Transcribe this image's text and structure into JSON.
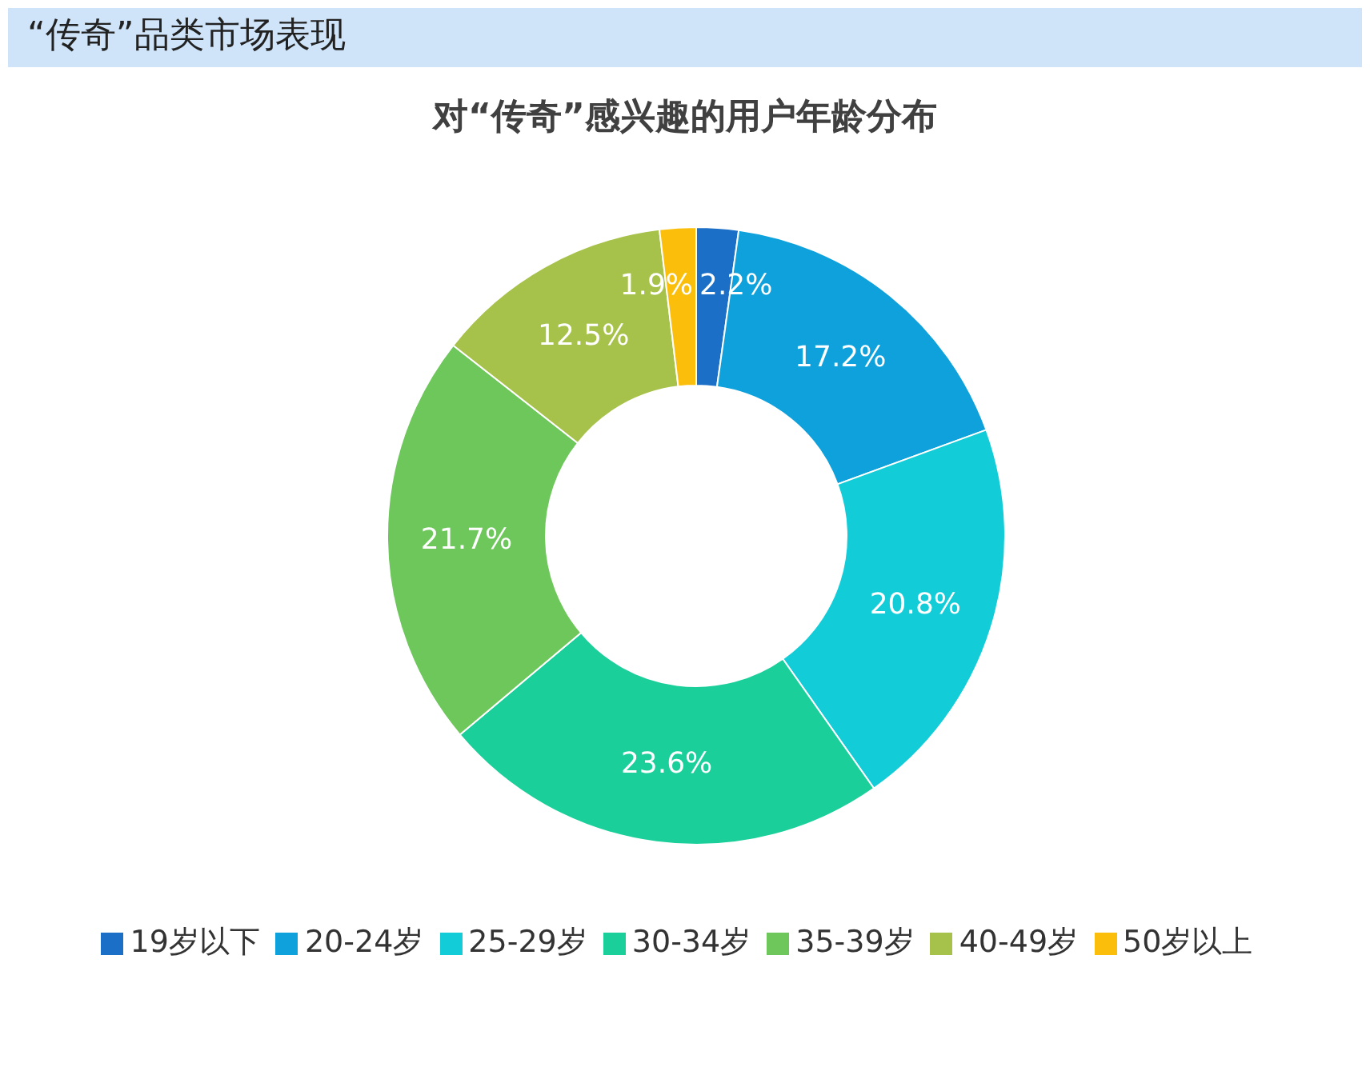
{
  "chart_data": {
    "type": "donut",
    "title": "“传奇”品类市场表现",
    "subtitle": "对“传奇”感兴趣的用户年龄分布",
    "categories": [
      "19岁以下",
      "20-24岁",
      "25-29岁",
      "30-34岁",
      "35-39岁",
      "40-49岁",
      "50岁以上"
    ],
    "values": [
      2.2,
      17.2,
      20.8,
      23.6,
      21.7,
      12.5,
      1.9
    ],
    "value_labels": [
      "2.2%",
      "17.2%",
      "20.8%",
      "23.6%",
      "21.7%",
      "12.5%",
      "1.9%"
    ],
    "colors": [
      "#1c6fc6",
      "#0ea1dc",
      "#12cdd8",
      "#1bcf9b",
      "#6dc75b",
      "#a7c24a",
      "#fbbf0b"
    ],
    "legend": "bottom"
  }
}
